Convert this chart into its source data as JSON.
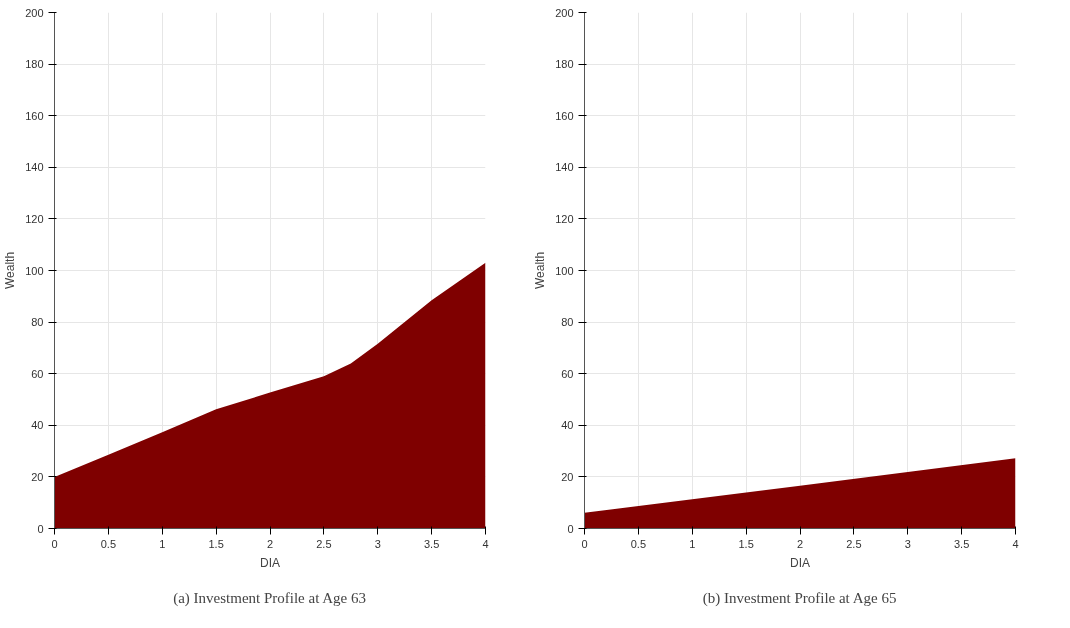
{
  "chart_data": [
    {
      "type": "area",
      "xlabel": "DIA",
      "ylabel": "Wealth",
      "annotations": [
        "(a) Investment Profile at Age 63"
      ],
      "x": [
        0,
        0.5,
        1,
        1.5,
        2,
        2.5,
        2.75,
        3,
        3.5,
        4
      ],
      "series": [
        {
          "color": "#7f0000",
          "values": [
            20,
            28.6,
            37.3,
            46.2,
            52.7,
            59,
            64,
            71.6,
            88.5,
            103
          ]
        }
      ],
      "xlim": [
        0,
        4
      ],
      "ylim": [
        0,
        200
      ],
      "xticks": [
        0,
        0.5,
        1,
        1.5,
        2,
        2.5,
        3,
        3.5,
        4
      ],
      "yticks": [
        0,
        20,
        40,
        60,
        80,
        100,
        120,
        140,
        160,
        180,
        200
      ],
      "grid": true
    },
    {
      "type": "area",
      "xlabel": "DIA",
      "ylabel": "Wealth",
      "annotations": [
        "(b) Investment Profile at Age 65"
      ],
      "x": [
        0,
        1,
        2,
        3,
        4
      ],
      "series": [
        {
          "color": "#7f0000",
          "values": [
            6.1,
            11.3,
            16.6,
            21.9,
            27.2
          ]
        }
      ],
      "xlim": [
        0,
        4
      ],
      "ylim": [
        0,
        200
      ],
      "xticks": [
        0,
        0.5,
        1,
        1.5,
        2,
        2.5,
        3,
        3.5,
        4
      ],
      "yticks": [
        0,
        20,
        40,
        60,
        80,
        100,
        120,
        140,
        160,
        180,
        200
      ],
      "grid": true
    }
  ]
}
